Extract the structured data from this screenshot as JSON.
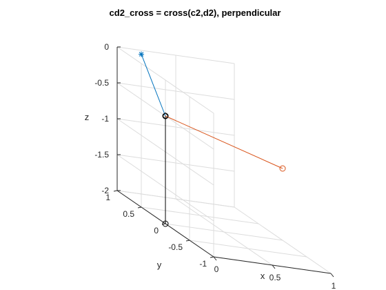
{
  "chart_data": {
    "type": "line3d",
    "title": "cd2_cross = cross(c2,d2), perpendicular",
    "xlabel": "x",
    "ylabel": "y",
    "zlabel": "z",
    "xlim": [
      0,
      1
    ],
    "ylim": [
      -1,
      1
    ],
    "zlim": [
      -2,
      0
    ],
    "grid": true,
    "x_ticks": [
      0,
      0.5,
      1
    ],
    "x_tick_labels": [
      "0",
      "0.5",
      "1"
    ],
    "y_ticks": [
      1,
      0.5,
      0,
      -0.5,
      -1
    ],
    "y_tick_labels": [
      "1",
      "0.5",
      "0",
      "-0.5",
      "-1"
    ],
    "z_ticks": [
      0,
      -0.5,
      -1,
      -1.5,
      -2
    ],
    "z_tick_labels": [
      "0",
      "-0.5",
      "-1",
      "-1.5",
      "-2"
    ],
    "series": [
      {
        "color": "#000000",
        "marker": "diamond",
        "points": [
          [
            0,
            0,
            -2
          ],
          [
            0,
            0,
            -0.5
          ]
        ]
      },
      {
        "color": "#0072bd",
        "marker": "asterisk",
        "points": [
          [
            0,
            0,
            -0.5
          ],
          [
            0,
            0.5,
            0.13
          ]
        ]
      },
      {
        "color": "#d95319",
        "marker": "circle",
        "points": [
          [
            0,
            0,
            -0.5
          ],
          [
            1,
            0,
            -1
          ]
        ]
      }
    ],
    "point_markers": [
      {
        "point": [
          0,
          0,
          -2
        ],
        "color": "#000000",
        "marker": "circle"
      },
      {
        "point": [
          0,
          0,
          -0.5
        ],
        "color": "#000000",
        "marker": "circle"
      }
    ]
  }
}
